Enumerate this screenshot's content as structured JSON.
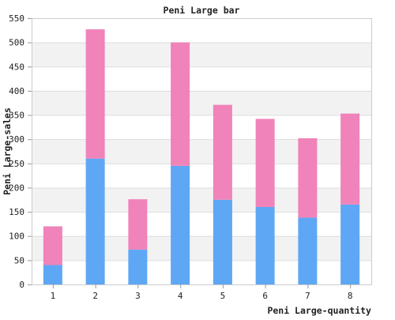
{
  "chart_data": {
    "type": "bar",
    "stacked": true,
    "title": "Peni Large bar",
    "xlabel": "Peni Large-quantity",
    "ylabel": "Peni Large-sales",
    "categories": [
      "1",
      "2",
      "3",
      "4",
      "5",
      "6",
      "7",
      "8"
    ],
    "series": [
      {
        "color": "#5ea7f5",
        "values": [
          40,
          260,
          72,
          245,
          175,
          160,
          138,
          165
        ]
      },
      {
        "color": "#f083b9",
        "values": [
          80,
          267,
          104,
          255,
          196,
          182,
          164,
          188
        ]
      }
    ],
    "ylim": [
      0,
      550
    ],
    "yticks": [
      "0",
      "50",
      "100",
      "150",
      "200",
      "250",
      "300",
      "350",
      "400",
      "450",
      "500",
      "550"
    ],
    "grid": true,
    "legend": "none"
  }
}
